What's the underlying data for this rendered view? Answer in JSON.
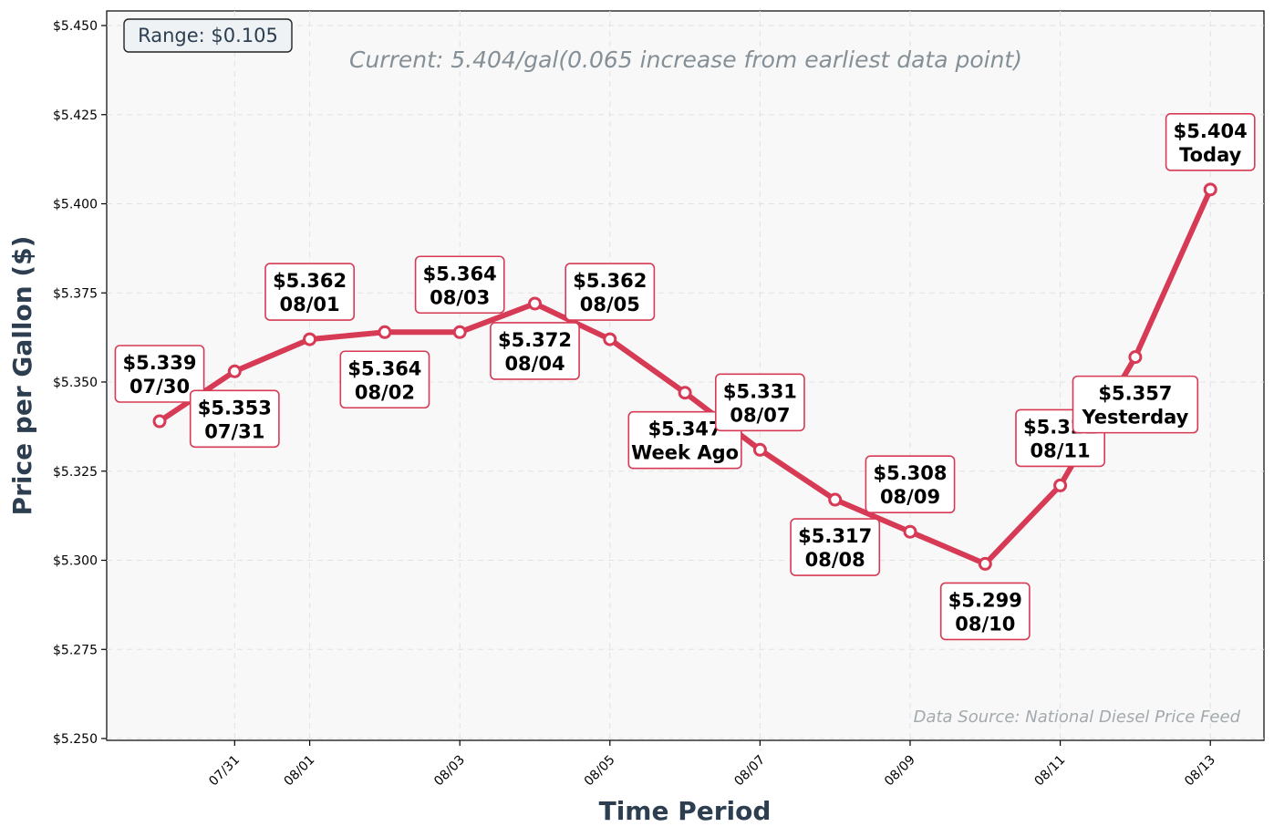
{
  "chart_data": {
    "type": "line",
    "xlabel": "Time Period",
    "ylabel": "Price per Gallon ($)",
    "ylim": [
      5.25,
      5.45
    ],
    "y_ticks": [
      "$5.250",
      "$5.275",
      "$5.300",
      "$5.325",
      "$5.350",
      "$5.375",
      "$5.400",
      "$5.425",
      "$5.450"
    ],
    "y_tick_values": [
      5.25,
      5.275,
      5.3,
      5.325,
      5.35,
      5.375,
      5.4,
      5.425,
      5.45
    ],
    "x_ticks": [
      "07/31",
      "08/01",
      "08/03",
      "08/05",
      "08/07",
      "08/09",
      "08/11",
      "08/13"
    ],
    "x_tick_index": [
      1,
      2,
      4,
      6,
      8,
      10,
      12,
      14
    ],
    "grid": true,
    "line_color": "#d63a55",
    "points": [
      {
        "value": 5.339,
        "label": "$5.339",
        "sub": "07/30",
        "pos": "above"
      },
      {
        "value": 5.353,
        "label": "$5.353",
        "sub": "07/31",
        "pos": "below"
      },
      {
        "value": 5.362,
        "label": "$5.362",
        "sub": "08/01",
        "pos": "above"
      },
      {
        "value": 5.364,
        "label": "$5.364",
        "sub": "08/02",
        "pos": "below"
      },
      {
        "value": 5.364,
        "label": "$5.364",
        "sub": "08/03",
        "pos": "above"
      },
      {
        "value": 5.372,
        "label": "$5.372",
        "sub": "08/04",
        "pos": "below"
      },
      {
        "value": 5.362,
        "label": "$5.362",
        "sub": "08/05",
        "pos": "above"
      },
      {
        "value": 5.347,
        "label": "$5.347",
        "sub": "Week Ago",
        "pos": "below"
      },
      {
        "value": 5.331,
        "label": "$5.331",
        "sub": "08/07",
        "pos": "above"
      },
      {
        "value": 5.317,
        "label": "$5.317",
        "sub": "08/08",
        "pos": "below"
      },
      {
        "value": 5.308,
        "label": "$5.308",
        "sub": "08/09",
        "pos": "above"
      },
      {
        "value": 5.299,
        "label": "$5.299",
        "sub": "08/10",
        "pos": "below"
      },
      {
        "value": 5.321,
        "label": "$5.321",
        "sub": "08/11",
        "pos": "above"
      },
      {
        "value": 5.357,
        "label": "$5.357",
        "sub": "Yesterday",
        "pos": "below"
      },
      {
        "value": 5.404,
        "label": "$5.404",
        "sub": "Today",
        "pos": "above"
      }
    ],
    "annotations": {
      "range": "Range: $0.105",
      "current": "Current: 5.404/gal(0.065 increase from earliest data point)",
      "source": "Data Source: National Diesel Price Feed"
    }
  }
}
